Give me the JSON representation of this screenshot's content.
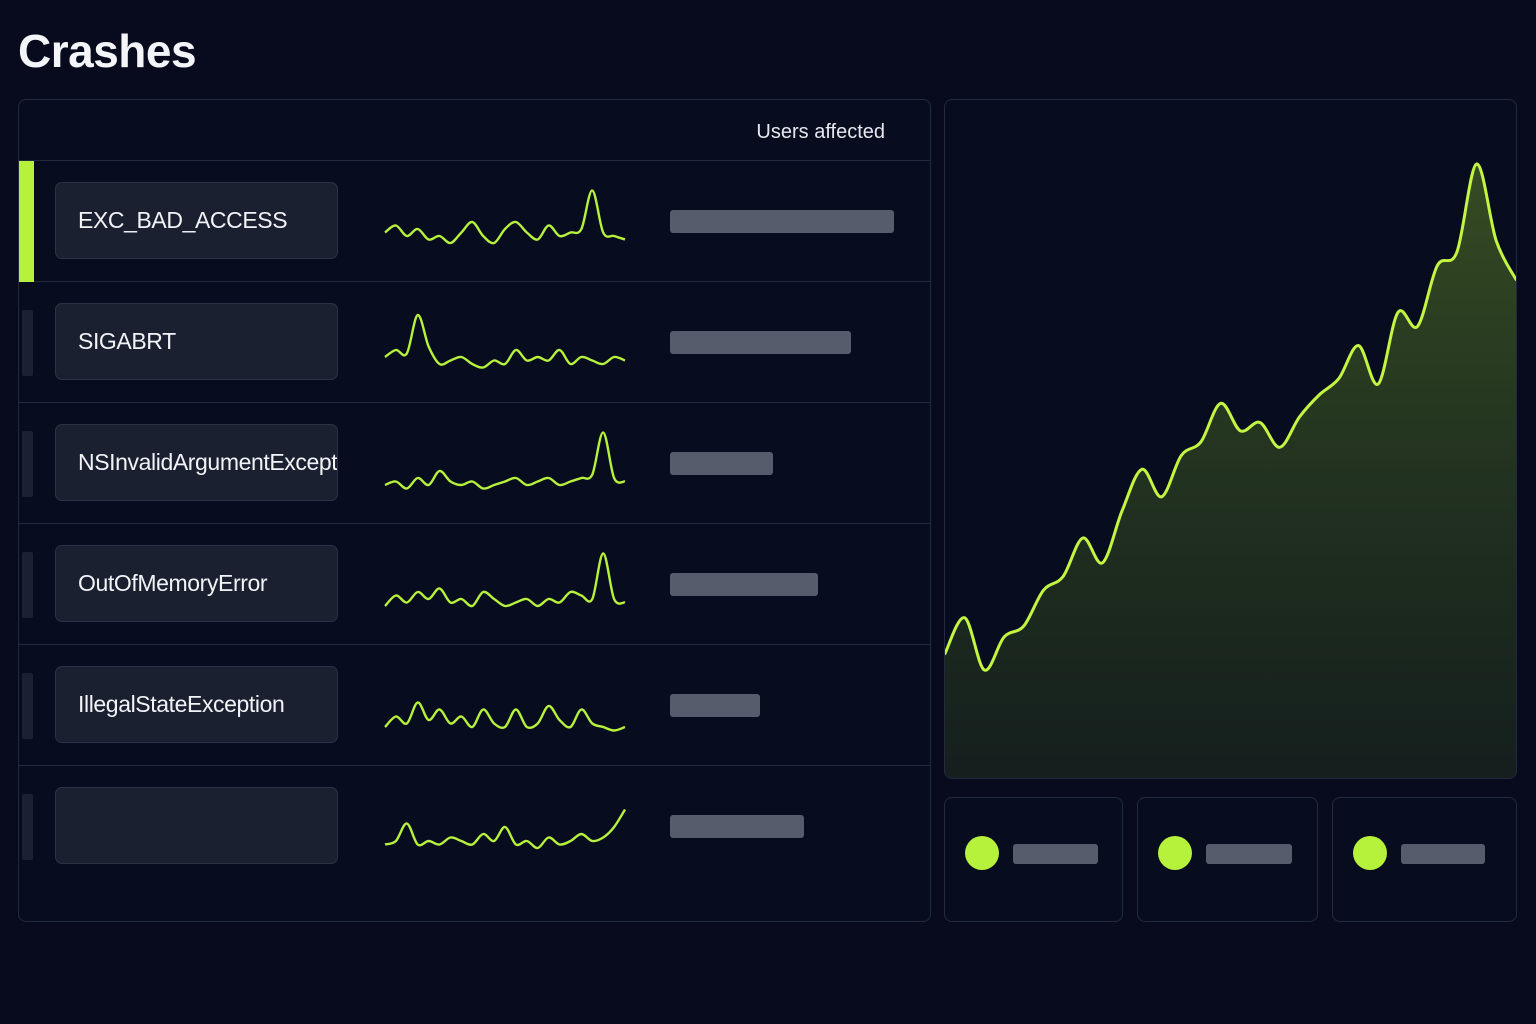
{
  "page": {
    "title": "Crashes",
    "accent_color": "#b6f23c",
    "background_color": "#070b1d"
  },
  "table": {
    "columns": {
      "users_affected": "Users affected"
    },
    "rows": [
      {
        "name": "EXC_BAD_ACCESS",
        "selected": true,
        "users_fraction": 1.0,
        "trend": [
          0.35,
          0.45,
          0.3,
          0.4,
          0.25,
          0.3,
          0.2,
          0.35,
          0.5,
          0.3,
          0.2,
          0.4,
          0.5,
          0.35,
          0.25,
          0.45,
          0.3,
          0.35,
          0.4,
          0.95,
          0.35,
          0.3,
          0.25
        ]
      },
      {
        "name": "SIGABRT",
        "selected": false,
        "users_fraction": 0.81,
        "trend": [
          0.3,
          0.4,
          0.35,
          0.9,
          0.45,
          0.2,
          0.25,
          0.3,
          0.2,
          0.15,
          0.25,
          0.2,
          0.4,
          0.25,
          0.3,
          0.25,
          0.4,
          0.2,
          0.3,
          0.25,
          0.2,
          0.3,
          0.25
        ]
      },
      {
        "name": "NSInvalidArgumentException",
        "selected": false,
        "users_fraction": 0.46,
        "trend": [
          0.2,
          0.25,
          0.15,
          0.3,
          0.2,
          0.4,
          0.25,
          0.2,
          0.25,
          0.15,
          0.2,
          0.25,
          0.3,
          0.2,
          0.25,
          0.3,
          0.2,
          0.25,
          0.3,
          0.35,
          0.95,
          0.3,
          0.25
        ]
      },
      {
        "name": "OutOfMemoryError",
        "selected": false,
        "users_fraction": 0.66,
        "trend": [
          0.2,
          0.35,
          0.25,
          0.4,
          0.3,
          0.45,
          0.25,
          0.3,
          0.2,
          0.4,
          0.3,
          0.2,
          0.25,
          0.3,
          0.2,
          0.3,
          0.25,
          0.4,
          0.35,
          0.3,
          0.95,
          0.3,
          0.25
        ]
      },
      {
        "name": "IllegalStateException",
        "selected": false,
        "users_fraction": 0.4,
        "trend": [
          0.2,
          0.35,
          0.25,
          0.55,
          0.3,
          0.45,
          0.25,
          0.35,
          0.2,
          0.45,
          0.25,
          0.2,
          0.45,
          0.2,
          0.25,
          0.5,
          0.3,
          0.2,
          0.45,
          0.25,
          0.2,
          0.15,
          0.2
        ]
      },
      {
        "name": "",
        "selected": false,
        "users_fraction": 0.6,
        "trend": [
          0.25,
          0.3,
          0.55,
          0.25,
          0.3,
          0.25,
          0.35,
          0.3,
          0.25,
          0.4,
          0.3,
          0.5,
          0.25,
          0.3,
          0.2,
          0.35,
          0.25,
          0.3,
          0.4,
          0.3,
          0.35,
          0.5,
          0.75
        ]
      }
    ]
  },
  "trend_chart": {
    "series": [
      0.06,
      0.19,
      0.0,
      0.12,
      0.16,
      0.29,
      0.34,
      0.48,
      0.39,
      0.58,
      0.73,
      0.63,
      0.78,
      0.83,
      0.97,
      0.87,
      0.9,
      0.81,
      0.92,
      1.0,
      1.06,
      1.18,
      1.04,
      1.3,
      1.25,
      1.47,
      1.52,
      1.84,
      1.56,
      1.42
    ]
  },
  "stat_cards": [
    {
      "bar_fraction": 0.85
    },
    {
      "bar_fraction": 0.86
    },
    {
      "bar_fraction": 0.84
    }
  ]
}
